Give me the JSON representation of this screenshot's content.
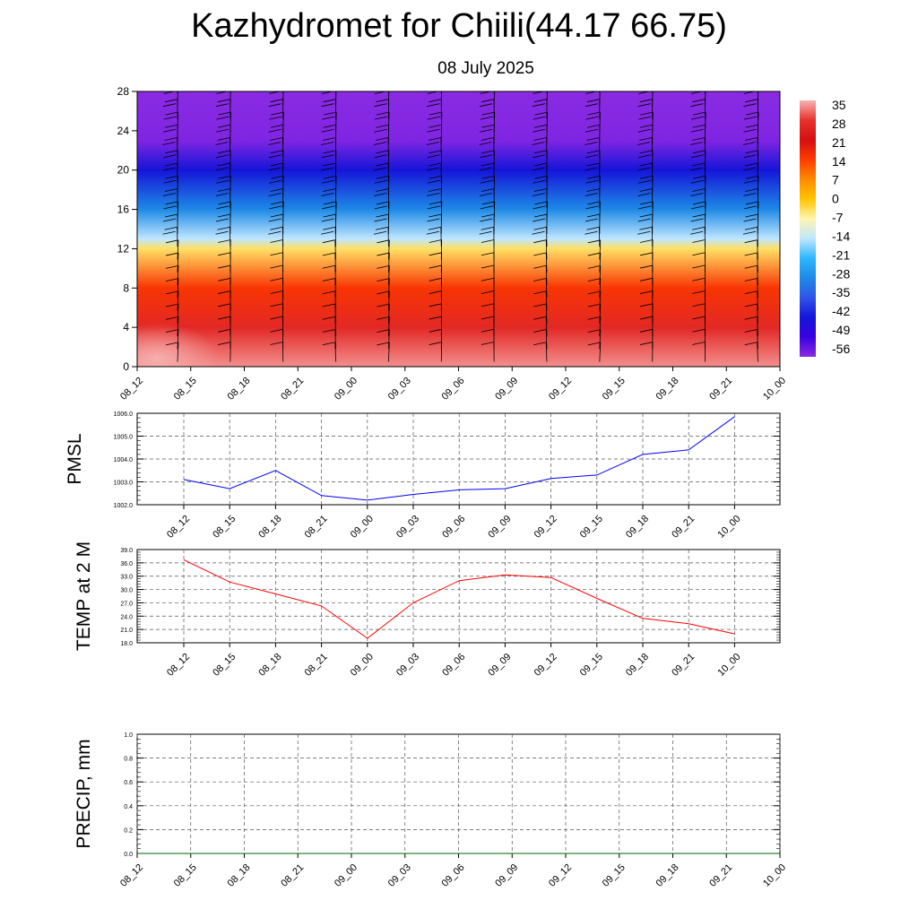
{
  "header": {
    "title": "Kazhydromet for Chiili(44.17 66.75)",
    "subtitle": "08 July 2025"
  },
  "chart_data": [
    {
      "type": "heatmap",
      "description_of_axes": "height (km) vs forecast time",
      "xticks": [
        "08_12",
        "08_15",
        "08_18",
        "08_21",
        "09_00",
        "09_03",
        "09_06",
        "09_09",
        "09_12",
        "09_15",
        "09_18",
        "09_21",
        "10_00"
      ],
      "yticks": [
        0,
        4,
        8,
        12,
        16,
        20,
        24,
        28
      ],
      "ylim": [
        0,
        28
      ],
      "colorbar": {
        "labels": [
          "35",
          "28",
          "21",
          "14",
          "7",
          "0",
          "-7",
          "-14",
          "-21",
          "-28",
          "-35",
          "-42",
          "-49",
          "-56"
        ],
        "colors": [
          "#f7b4b4",
          "#e8322c",
          "#d40f12",
          "#ff3b00",
          "#ff8a00",
          "#ffc400",
          "#fff5b0",
          "#bfe6ff",
          "#2eb7ff",
          "#1e8ae6",
          "#2f55e8",
          "#1515d8",
          "#3b00e0",
          "#8a2be2"
        ]
      },
      "temperature_profile_by_height": [
        {
          "h": 0,
          "t": 33
        },
        {
          "h": 4,
          "t": 26
        },
        {
          "h": 8,
          "t": 15
        },
        {
          "h": 12,
          "t": -4
        },
        {
          "h": 13,
          "t": -14
        },
        {
          "h": 16,
          "t": -28
        },
        {
          "h": 20,
          "t": -42
        },
        {
          "h": 23,
          "t": -55
        },
        {
          "h": 28,
          "t": -62
        }
      ],
      "wind_barbs": true
    },
    {
      "type": "line",
      "ylabel": "PMSL",
      "categories": [
        "08_12",
        "08_15",
        "08_18",
        "08_21",
        "09_00",
        "09_03",
        "09_06",
        "09_09",
        "09_12",
        "09_15",
        "09_18",
        "09_21",
        "10_00"
      ],
      "yticks": [
        "1002.0",
        "1003.0",
        "1004.0",
        "1005.0",
        "1006.0"
      ],
      "ylim": [
        1002.0,
        1006.0
      ],
      "series": [
        {
          "values": [
            1003.1,
            1002.7,
            1003.5,
            1002.4,
            1002.2,
            1002.45,
            1002.65,
            1002.7,
            1003.15,
            1003.3,
            1004.2,
            1004.4,
            1005.85
          ],
          "color": "#0000ff"
        }
      ]
    },
    {
      "type": "line",
      "ylabel": "TEMP at 2 M",
      "categories": [
        "08_12",
        "08_15",
        "08_18",
        "08_21",
        "09_00",
        "09_03",
        "09_06",
        "09_09",
        "09_12",
        "09_15",
        "09_18",
        "09_21",
        "10_00"
      ],
      "yticks": [
        "18.0",
        "21.0",
        "24.0",
        "27.0",
        "30.0",
        "33.0",
        "36.0",
        "39.0"
      ],
      "ylim": [
        18.0,
        39.0
      ],
      "series": [
        {
          "values": [
            36.7,
            31.7,
            29.0,
            26.3,
            19.0,
            27.0,
            32.0,
            33.3,
            32.7,
            28.0,
            23.5,
            22.3,
            20.0
          ],
          "color": "#ff0000"
        }
      ]
    },
    {
      "type": "line",
      "ylabel": "PRECIP, mm",
      "categories": [
        "08_12",
        "08_15",
        "08_18",
        "08_21",
        "09_00",
        "09_03",
        "09_06",
        "09_09",
        "09_12",
        "09_15",
        "09_18",
        "09_21",
        "10_00"
      ],
      "yticks": [
        "0.0",
        "0.2",
        "0.4",
        "0.6",
        "0.8",
        "1.0"
      ],
      "ylim": [
        0.0,
        1.0
      ],
      "series": [
        {
          "values": [
            0,
            0,
            0,
            0,
            0,
            0,
            0,
            0,
            0,
            0,
            0,
            0,
            0
          ],
          "color": "#006400"
        }
      ]
    }
  ]
}
